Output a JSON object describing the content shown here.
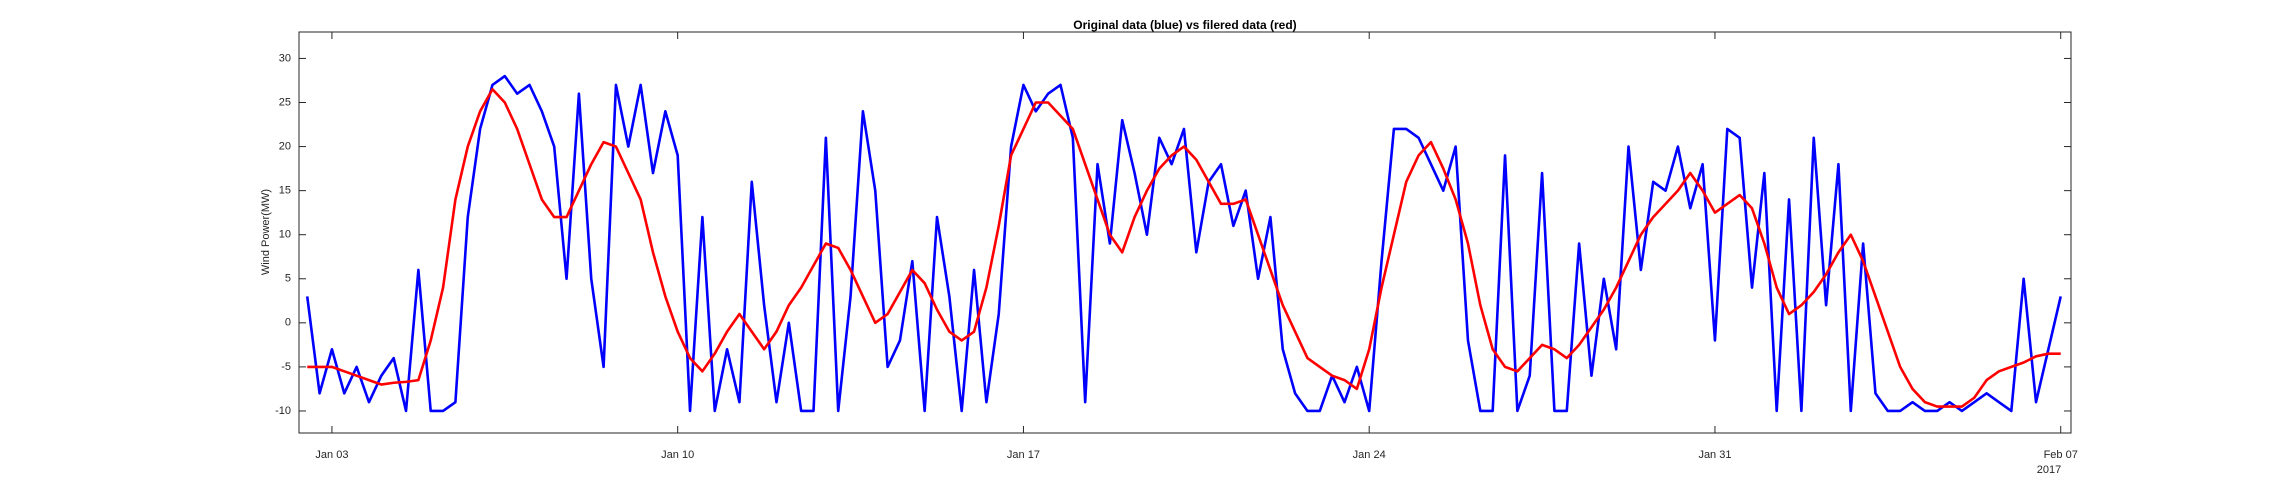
{
  "chart_data": {
    "type": "line",
    "title": "Original data (blue) vs filered data (red)",
    "y_label": "Wind Power(MW)",
    "x_secondary_label": "2017",
    "xlim": [
      "2017-01-02T08:00",
      "2017-02-07T05:00"
    ],
    "ylim": [
      -12.5,
      33
    ],
    "yticks": [
      -10,
      -5,
      0,
      5,
      10,
      15,
      20,
      25,
      30
    ],
    "xticks": [
      {
        "value": "2017-01-03T00:00",
        "label": "Jan 03"
      },
      {
        "value": "2017-01-10T00:00",
        "label": "Jan 10"
      },
      {
        "value": "2017-01-17T00:00",
        "label": "Jan 17"
      },
      {
        "value": "2017-01-24T00:00",
        "label": "Jan 24"
      },
      {
        "value": "2017-01-31T00:00",
        "label": "Jan 31"
      },
      {
        "value": "2017-02-07T00:00",
        "label": "Feb 07"
      }
    ],
    "x": [
      "2017-01-02T12:00",
      "2017-01-02T18:00",
      "2017-01-03T00:00",
      "2017-01-03T06:00",
      "2017-01-03T12:00",
      "2017-01-03T18:00",
      "2017-01-04T00:00",
      "2017-01-04T06:00",
      "2017-01-04T12:00",
      "2017-01-04T18:00",
      "2017-01-05T00:00",
      "2017-01-05T06:00",
      "2017-01-05T12:00",
      "2017-01-05T18:00",
      "2017-01-06T00:00",
      "2017-01-06T06:00",
      "2017-01-06T12:00",
      "2017-01-06T18:00",
      "2017-01-07T00:00",
      "2017-01-07T06:00",
      "2017-01-07T12:00",
      "2017-01-07T18:00",
      "2017-01-08T00:00",
      "2017-01-08T06:00",
      "2017-01-08T12:00",
      "2017-01-08T18:00",
      "2017-01-09T00:00",
      "2017-01-09T06:00",
      "2017-01-09T12:00",
      "2017-01-09T18:00",
      "2017-01-10T00:00",
      "2017-01-10T06:00",
      "2017-01-10T12:00",
      "2017-01-10T18:00",
      "2017-01-11T00:00",
      "2017-01-11T06:00",
      "2017-01-11T12:00",
      "2017-01-11T18:00",
      "2017-01-12T00:00",
      "2017-01-12T06:00",
      "2017-01-12T12:00",
      "2017-01-12T18:00",
      "2017-01-13T00:00",
      "2017-01-13T06:00",
      "2017-01-13T12:00",
      "2017-01-13T18:00",
      "2017-01-14T00:00",
      "2017-01-14T06:00",
      "2017-01-14T12:00",
      "2017-01-14T18:00",
      "2017-01-15T00:00",
      "2017-01-15T06:00",
      "2017-01-15T12:00",
      "2017-01-15T18:00",
      "2017-01-16T00:00",
      "2017-01-16T06:00",
      "2017-01-16T12:00",
      "2017-01-16T18:00",
      "2017-01-17T00:00",
      "2017-01-17T06:00",
      "2017-01-17T12:00",
      "2017-01-17T18:00",
      "2017-01-18T00:00",
      "2017-01-18T06:00",
      "2017-01-18T12:00",
      "2017-01-18T18:00",
      "2017-01-19T00:00",
      "2017-01-19T06:00",
      "2017-01-19T12:00",
      "2017-01-19T18:00",
      "2017-01-20T00:00",
      "2017-01-20T06:00",
      "2017-01-20T12:00",
      "2017-01-20T18:00",
      "2017-01-21T00:00",
      "2017-01-21T06:00",
      "2017-01-21T12:00",
      "2017-01-21T18:00",
      "2017-01-22T00:00",
      "2017-01-22T06:00",
      "2017-01-22T12:00",
      "2017-01-22T18:00",
      "2017-01-23T00:00",
      "2017-01-23T06:00",
      "2017-01-23T12:00",
      "2017-01-23T18:00",
      "2017-01-24T00:00",
      "2017-01-24T06:00",
      "2017-01-24T12:00",
      "2017-01-24T18:00",
      "2017-01-25T00:00",
      "2017-01-25T06:00",
      "2017-01-25T12:00",
      "2017-01-25T18:00",
      "2017-01-26T00:00",
      "2017-01-26T06:00",
      "2017-01-26T12:00",
      "2017-01-26T18:00",
      "2017-01-27T00:00",
      "2017-01-27T06:00",
      "2017-01-27T12:00",
      "2017-01-27T18:00",
      "2017-01-28T00:00",
      "2017-01-28T06:00",
      "2017-01-28T12:00",
      "2017-01-28T18:00",
      "2017-01-29T00:00",
      "2017-01-29T06:00",
      "2017-01-29T12:00",
      "2017-01-29T18:00",
      "2017-01-30T00:00",
      "2017-01-30T06:00",
      "2017-01-30T12:00",
      "2017-01-30T18:00",
      "2017-01-31T00:00",
      "2017-01-31T06:00",
      "2017-01-31T12:00",
      "2017-01-31T18:00",
      "2017-02-01T00:00",
      "2017-02-01T06:00",
      "2017-02-01T12:00",
      "2017-02-01T18:00",
      "2017-02-02T00:00",
      "2017-02-02T06:00",
      "2017-02-02T12:00",
      "2017-02-02T18:00",
      "2017-02-03T00:00",
      "2017-02-03T06:00",
      "2017-02-03T12:00",
      "2017-02-03T18:00",
      "2017-02-04T00:00",
      "2017-02-04T06:00",
      "2017-02-04T12:00",
      "2017-02-04T18:00",
      "2017-02-05T00:00",
      "2017-02-05T06:00",
      "2017-02-05T12:00",
      "2017-02-05T18:00",
      "2017-02-06T00:00",
      "2017-02-06T06:00",
      "2017-02-06T12:00",
      "2017-02-06T18:00",
      "2017-02-07T00:00"
    ],
    "series": [
      {
        "color": "#0000ff",
        "values": [
          3,
          -8,
          -3,
          -8,
          -5,
          -9,
          -6,
          -4,
          -10,
          6,
          -10,
          -10,
          -9,
          12,
          22,
          27,
          28,
          26,
          27,
          24,
          20,
          5,
          26,
          5,
          -5,
          27,
          20,
          27,
          17,
          24,
          19,
          -10,
          12,
          -10,
          -3,
          -9,
          16,
          2,
          -9,
          0,
          -10,
          -10,
          21,
          -10,
          3,
          24,
          15,
          -5,
          -2,
          7,
          -10,
          12,
          3,
          -10,
          6,
          -9,
          1,
          20,
          27,
          24,
          26,
          27,
          21,
          -9,
          18,
          9,
          23,
          17,
          10,
          21,
          18,
          22,
          8,
          16,
          18,
          11,
          15,
          5,
          12,
          -3,
          -8,
          -10,
          -10,
          -6,
          -9,
          -5,
          -10,
          7,
          22,
          22,
          21,
          18,
          15,
          20,
          -2,
          -10,
          -10,
          19,
          -10,
          -6,
          17,
          -10,
          -10,
          9,
          -6,
          5,
          -3,
          20,
          6,
          16,
          15,
          20,
          13,
          18,
          -2,
          22,
          21,
          4,
          17,
          -10,
          14,
          -10,
          21,
          2,
          18,
          -10,
          9,
          -8,
          -10,
          -10,
          -9,
          -10,
          -10,
          -9,
          -10,
          -9,
          -8,
          -9,
          -10,
          5,
          -9,
          -3,
          3
        ]
      },
      {
        "color": "#ff0000",
        "values": [
          -5,
          -5,
          -5,
          -5.5,
          -6,
          -6.5,
          -7,
          -6.8,
          -6.7,
          -6.5,
          -2,
          4,
          14,
          20,
          24,
          26.5,
          25,
          22,
          18,
          14,
          12,
          12,
          15,
          18,
          20.5,
          20,
          17,
          14,
          8,
          3,
          -1,
          -4,
          -5.5,
          -3.5,
          -1,
          1,
          -1,
          -3,
          -1,
          2,
          4,
          6.5,
          9,
          8.5,
          6,
          3,
          0,
          1,
          3.5,
          6,
          4.5,
          1.5,
          -1,
          -2,
          -1,
          4,
          11,
          19,
          22,
          25,
          25,
          23.5,
          22,
          18,
          14,
          10,
          8,
          12,
          15,
          17.5,
          19,
          20,
          18.5,
          16,
          13.5,
          13.5,
          14,
          10,
          6,
          2,
          -1,
          -4,
          -5,
          -6,
          -6.5,
          -7.5,
          -3,
          4,
          10,
          16,
          19,
          20.5,
          17.5,
          14,
          9,
          2,
          -3,
          -5,
          -5.5,
          -4,
          -2.5,
          -3,
          -4,
          -2.5,
          -0.5,
          1.5,
          4,
          7,
          10,
          12,
          13.5,
          15,
          17,
          15,
          12.5,
          13.5,
          14.5,
          13,
          9,
          4,
          1,
          2,
          3.5,
          5.5,
          8,
          10,
          7,
          3,
          -1,
          -5,
          -7.5,
          -9,
          -9.5,
          -9.5,
          -9.5,
          -8.5,
          -6.5,
          -5.5,
          -5,
          -4.5,
          -3.8,
          -3.5,
          -3.5
        ]
      }
    ]
  }
}
